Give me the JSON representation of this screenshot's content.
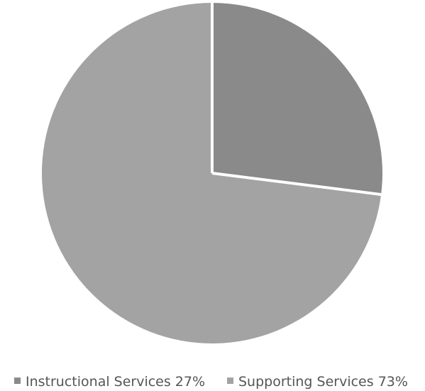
{
  "chart_data": {
    "type": "pie",
    "categories": [
      "Instructional Services",
      "Supporting Services"
    ],
    "values": [
      27,
      73
    ],
    "colors": [
      "#8a8a8a",
      "#a3a3a3"
    ],
    "separator_color": "#ffffff",
    "legend_position": "bottom",
    "legend": [
      {
        "name": "Instructional Services",
        "label": "Instructional Services 27%"
      },
      {
        "name": "Supporting Services",
        "label": "Supporting Services 73%"
      }
    ]
  }
}
